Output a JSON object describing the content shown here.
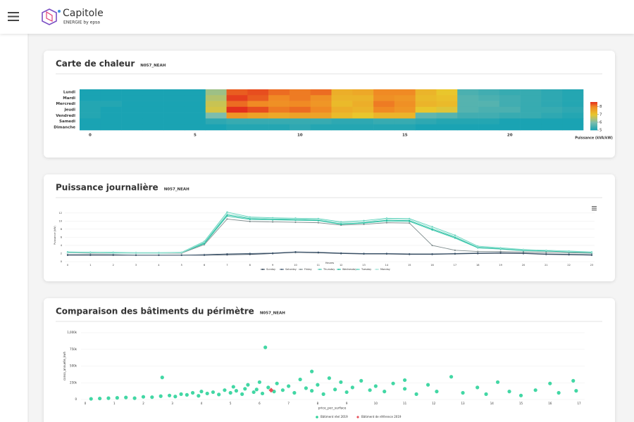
{
  "header": {
    "brand": "Capitole",
    "tagline": "ENERGIE by epsa"
  },
  "chart_data": [
    {
      "type": "heatmap",
      "title": "Carte de chaleur",
      "subtitle": "N057_NEAH",
      "rows": [
        "Lundi",
        "Mardi",
        "Mercredi",
        "Jeudi",
        "Vendredi",
        "Samedi",
        "Dimanche"
      ],
      "xlim": [
        -0.5,
        23.5
      ],
      "xticks": [
        0,
        5,
        10,
        15,
        20
      ],
      "z": [
        [
          5.0,
          5.0,
          5.0,
          5.0,
          5.0,
          5.0,
          6.3,
          8.3,
          8.4,
          8.2,
          8.1,
          8.2,
          7.4,
          7.5,
          8.0,
          8.0,
          7.3,
          7.0,
          5.5,
          5.4,
          5.3,
          5.3,
          5.2,
          5.1
        ],
        [
          5.0,
          5.0,
          5.0,
          5.0,
          5.0,
          5.0,
          6.5,
          8.5,
          8.3,
          8.0,
          8.1,
          7.9,
          7.3,
          7.3,
          7.9,
          7.8,
          7.2,
          7.1,
          5.6,
          5.5,
          5.4,
          5.3,
          5.2,
          5.1
        ],
        [
          5.1,
          5.1,
          5.0,
          5.0,
          5.0,
          5.0,
          6.7,
          8.2,
          8.0,
          7.9,
          8.0,
          7.8,
          7.2,
          7.4,
          8.1,
          7.9,
          7.3,
          7.2,
          5.6,
          5.6,
          5.4,
          5.3,
          5.2,
          5.1
        ],
        [
          5.1,
          5.0,
          5.0,
          5.0,
          5.0,
          5.0,
          6.8,
          8.6,
          8.4,
          8.1,
          8.2,
          8.0,
          7.4,
          7.3,
          8.0,
          7.8,
          7.0,
          6.9,
          5.6,
          5.5,
          5.5,
          5.3,
          5.3,
          5.2
        ],
        [
          5.1,
          5.0,
          5.0,
          5.0,
          5.0,
          5.0,
          6.0,
          7.8,
          7.6,
          7.5,
          7.6,
          7.6,
          7.2,
          7.0,
          7.3,
          7.3,
          5.7,
          5.6,
          5.4,
          5.4,
          5.3,
          5.3,
          5.2,
          5.1
        ],
        [
          5.0,
          5.0,
          5.0,
          5.0,
          5.0,
          5.0,
          5.2,
          5.3,
          5.3,
          5.3,
          5.3,
          5.3,
          5.2,
          5.2,
          5.3,
          5.3,
          5.2,
          5.1,
          5.1,
          5.1,
          5.0,
          5.0,
          5.0,
          5.0
        ],
        [
          5.0,
          5.0,
          5.0,
          5.0,
          5.0,
          5.0,
          5.0,
          5.1,
          5.1,
          5.1,
          5.2,
          5.1,
          5.1,
          5.1,
          5.1,
          5.1,
          5.0,
          5.0,
          5.0,
          5.0,
          5.0,
          5.0,
          5.0,
          5.0
        ]
      ],
      "colorscale": [
        [
          5,
          "#1aa3b3"
        ],
        [
          6,
          "#7cbdad"
        ],
        [
          7,
          "#e9c62c"
        ],
        [
          8,
          "#f08a24"
        ],
        [
          8.6,
          "#e3301d"
        ]
      ],
      "zlim": [
        5,
        8.6
      ],
      "zticks": [
        5,
        6,
        7,
        8
      ],
      "colorbar_title": "Puissance (kVA/kW)"
    },
    {
      "type": "line",
      "title": "Puissance journalière",
      "subtitle": "N057_NEAH",
      "x": [
        0,
        1,
        2,
        3,
        4,
        5,
        6,
        7,
        8,
        9,
        10,
        11,
        12,
        13,
        14,
        15,
        16,
        17,
        18,
        19,
        20,
        21,
        22,
        23
      ],
      "xlim": [
        0,
        23
      ],
      "xticks": [
        0,
        1,
        2,
        3,
        4,
        5,
        6,
        7,
        8,
        9,
        10,
        11,
        12,
        13,
        14,
        15,
        16,
        17,
        18,
        19,
        20,
        21,
        22,
        23
      ],
      "ylim": [
        0,
        13
      ],
      "yticks": [
        0,
        2,
        4,
        6,
        8,
        10,
        12
      ],
      "grid": true,
      "xlabel": "Heures",
      "ylabel": "Puissance (kW)",
      "series": [
        {
          "name": "Sunday",
          "color": "#2c3e50",
          "values": [
            1.6,
            1.6,
            1.6,
            1.6,
            1.6,
            1.6,
            1.6,
            1.7,
            1.8,
            2.0,
            2.3,
            2.2,
            2.0,
            1.9,
            1.9,
            1.8,
            1.8,
            1.9,
            2.0,
            2.1,
            2.0,
            1.8,
            1.7,
            1.6
          ]
        },
        {
          "name": "Saturday",
          "color": "#3d566e",
          "values": [
            1.7,
            1.7,
            1.7,
            1.6,
            1.6,
            1.6,
            1.7,
            1.9,
            2.0,
            2.1,
            2.4,
            2.3,
            2.1,
            2.0,
            2.0,
            1.9,
            1.9,
            2.0,
            2.1,
            2.2,
            2.1,
            1.9,
            1.8,
            1.7
          ]
        },
        {
          "name": "Friday",
          "color": "#7f8c8d",
          "values": [
            2.2,
            2.1,
            2.1,
            2.1,
            2.1,
            2.1,
            4.2,
            10.5,
            9.9,
            9.8,
            9.7,
            9.6,
            9.0,
            9.2,
            9.6,
            9.5,
            4.0,
            2.8,
            2.5,
            2.5,
            2.4,
            2.3,
            2.2,
            2.1
          ]
        },
        {
          "name": "Thursday",
          "color": "#48c9b0",
          "values": [
            2.3,
            2.2,
            2.2,
            2.1,
            2.1,
            2.2,
            4.4,
            11.2,
            10.4,
            10.3,
            10.2,
            10.1,
            9.2,
            9.5,
            10.0,
            9.9,
            7.8,
            5.8,
            3.4,
            3.1,
            2.7,
            2.6,
            2.4,
            2.2
          ]
        },
        {
          "name": "Wednesday",
          "color": "#1abc9c",
          "values": [
            2.3,
            2.3,
            2.2,
            2.2,
            2.2,
            2.2,
            4.6,
            11.5,
            10.6,
            10.4,
            10.4,
            10.2,
            9.3,
            9.6,
            10.2,
            10.1,
            8.0,
            6.0,
            3.5,
            3.2,
            2.8,
            2.7,
            2.4,
            2.2
          ]
        },
        {
          "name": "Tuesday",
          "color": "#5fd3bc",
          "values": [
            2.4,
            2.3,
            2.3,
            2.2,
            2.2,
            2.3,
            5.0,
            12.2,
            11.0,
            10.8,
            10.7,
            10.6,
            9.8,
            10.1,
            10.7,
            10.6,
            8.6,
            6.5,
            3.8,
            3.4,
            3.0,
            2.8,
            2.6,
            2.4
          ]
        },
        {
          "name": "Monday",
          "color": "#a3e4d7",
          "values": [
            2.2,
            2.2,
            2.1,
            2.1,
            2.1,
            2.2,
            4.8,
            11.8,
            10.8,
            10.6,
            10.5,
            10.4,
            9.6,
            9.8,
            10.5,
            10.4,
            8.3,
            6.2,
            3.6,
            3.3,
            2.9,
            2.8,
            2.5,
            2.3
          ]
        }
      ]
    },
    {
      "type": "scatter",
      "title": "Comparaison des bâtiments du périmètre",
      "subtitle": "N057_NEAH",
      "xlabel": "price_per_surface",
      "ylabel": "conso_annuelle_kwh",
      "xlim": [
        0,
        17
      ],
      "xticks": [
        0,
        1,
        2,
        3,
        4,
        5,
        6,
        7,
        8,
        9,
        10,
        11,
        12,
        13,
        14,
        15,
        16,
        17
      ],
      "ylim": [
        0,
        1000000
      ],
      "yticks": [
        0,
        {
          "value": 250000,
          "label": "250k"
        },
        {
          "value": 500000,
          "label": "500k"
        },
        {
          "value": 750000,
          "label": "750k"
        },
        {
          "value": 1000000,
          "label": "1,000k"
        }
      ],
      "grid": true,
      "series": [
        {
          "name": "Bâtiment réel 2019",
          "color": "#2ed39a",
          "marker": "circle",
          "x": [
            0.2,
            0.5,
            0.8,
            1.1,
            1.4,
            1.7,
            2.0,
            2.3,
            2.6,
            2.65,
            2.9,
            3.1,
            3.3,
            3.5,
            3.7,
            3.9,
            4.0,
            4.2,
            4.4,
            4.6,
            4.8,
            5.0,
            5.1,
            5.2,
            5.4,
            5.5,
            5.6,
            5.8,
            5.9,
            6.0,
            6.1,
            6.2,
            6.3,
            6.5,
            6.6,
            6.8,
            7.0,
            7.2,
            7.4,
            7.6,
            7.8,
            7.8,
            8.0,
            8.2,
            8.4,
            8.6,
            8.8,
            9.0,
            9.2,
            9.5,
            9.8,
            10.0,
            10.3,
            10.6,
            11.0,
            11.0,
            11.4,
            11.8,
            12.1,
            12.6,
            13.0,
            13.5,
            13.8,
            14.2,
            14.6,
            15.0,
            15.5,
            16.0,
            16.3,
            16.8,
            16.9
          ],
          "y": [
            10000,
            15000,
            20000,
            25000,
            30000,
            20000,
            40000,
            35000,
            50000,
            330000,
            60000,
            45000,
            80000,
            70000,
            100000,
            55000,
            120000,
            90000,
            110000,
            75000,
            140000,
            100000,
            190000,
            130000,
            80000,
            160000,
            220000,
            110000,
            150000,
            260000,
            90000,
            780000,
            180000,
            120000,
            240000,
            140000,
            200000,
            100000,
            300000,
            170000,
            130000,
            420000,
            220000,
            80000,
            320000,
            150000,
            260000,
            110000,
            180000,
            280000,
            140000,
            200000,
            120000,
            240000,
            160000,
            290000,
            80000,
            220000,
            120000,
            340000,
            100000,
            180000,
            80000,
            260000,
            120000,
            60000,
            140000,
            240000,
            100000,
            280000,
            130000
          ]
        },
        {
          "name": "Bâtiment de référence 2019",
          "color": "#e8505b",
          "marker": "diamond",
          "x": [
            6.4
          ],
          "y": [
            140000
          ]
        }
      ]
    }
  ]
}
